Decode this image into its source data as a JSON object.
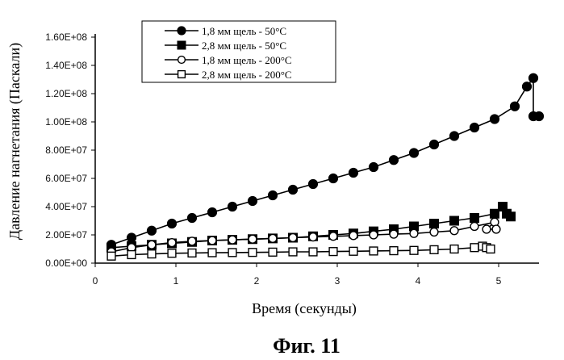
{
  "chart_data": {
    "type": "line",
    "title": "",
    "xlabel": "Время (секунды)",
    "ylabel": "Давление нагнетания (Паскали)",
    "caption": "Фиг. 11",
    "xlim": [
      0,
      5.5
    ],
    "ylim": [
      0,
      160000000
    ],
    "x_ticks": [
      0,
      1,
      2,
      3,
      4,
      5
    ],
    "x_tick_labels": [
      "0",
      "1",
      "2",
      "3",
      "4",
      "5"
    ],
    "y_ticks": [
      0,
      20000000,
      40000000,
      60000000,
      80000000,
      100000000,
      120000000,
      140000000,
      160000000
    ],
    "y_tick_labels": [
      "0.00E+00",
      "2.00E+07",
      "4.00E+07",
      "6.00E+07",
      "8.00E+07",
      "1.00E+08",
      "1.20E+08",
      "1.40E+08",
      "1.60E+08"
    ],
    "grid": false,
    "legend_position": "top-center",
    "series": [
      {
        "name": "1,8 мм щель - 50°C",
        "marker": "circle-filled",
        "x": [
          0.2,
          0.45,
          0.7,
          0.95,
          1.2,
          1.45,
          1.7,
          1.95,
          2.2,
          2.45,
          2.7,
          2.95,
          3.2,
          3.45,
          3.7,
          3.95,
          4.2,
          4.45,
          4.7,
          4.95,
          5.2,
          5.35,
          5.43,
          5.43,
          5.5
        ],
        "y": [
          13000000,
          18000000,
          23000000,
          28000000,
          32000000,
          36000000,
          40000000,
          44000000,
          48000000,
          52000000,
          56000000,
          60000000,
          64000000,
          68000000,
          73000000,
          78000000,
          84000000,
          90000000,
          96000000,
          102000000,
          111000000,
          125000000,
          131000000,
          104000000,
          104000000
        ]
      },
      {
        "name": "2,8 мм щель - 50°C",
        "marker": "square-filled",
        "x": [
          0.2,
          0.45,
          0.7,
          0.95,
          1.2,
          1.45,
          1.7,
          1.95,
          2.2,
          2.45,
          2.7,
          2.95,
          3.2,
          3.45,
          3.7,
          3.95,
          4.2,
          4.45,
          4.7,
          4.95,
          5.05,
          5.1,
          5.15
        ],
        "y": [
          11000000,
          12000000,
          13000000,
          14000000,
          15000000,
          16000000,
          16500000,
          17000000,
          17500000,
          18000000,
          19000000,
          20000000,
          21000000,
          22500000,
          24000000,
          26000000,
          28000000,
          30000000,
          32000000,
          35000000,
          40000000,
          35000000,
          33000000
        ]
      },
      {
        "name": "1,8 мм щель - 200°C",
        "marker": "circle-open",
        "x": [
          0.2,
          0.45,
          0.7,
          0.95,
          1.2,
          1.45,
          1.7,
          1.95,
          2.2,
          2.45,
          2.7,
          2.95,
          3.2,
          3.45,
          3.7,
          3.95,
          4.2,
          4.45,
          4.7,
          4.95,
          4.85,
          4.97
        ],
        "y": [
          8000000,
          11000000,
          13000000,
          14500000,
          15500000,
          16000000,
          16500000,
          17000000,
          17500000,
          18000000,
          18500000,
          19000000,
          19500000,
          20000000,
          20500000,
          21000000,
          22000000,
          23000000,
          26000000,
          29000000,
          24000000,
          24000000
        ]
      },
      {
        "name": "2,8 мм щель - 200°C",
        "marker": "square-open",
        "x": [
          0.2,
          0.45,
          0.7,
          0.95,
          1.2,
          1.45,
          1.7,
          1.95,
          2.2,
          2.45,
          2.7,
          2.95,
          3.2,
          3.45,
          3.7,
          3.95,
          4.2,
          4.45,
          4.7,
          4.8,
          4.85,
          4.9
        ],
        "y": [
          5000000,
          6000000,
          6500000,
          7000000,
          7200000,
          7400000,
          7500000,
          7600000,
          7800000,
          8000000,
          8000000,
          8200000,
          8400000,
          8600000,
          8800000,
          9000000,
          9500000,
          10000000,
          11000000,
          12000000,
          11000000,
          10000000
        ]
      }
    ]
  }
}
